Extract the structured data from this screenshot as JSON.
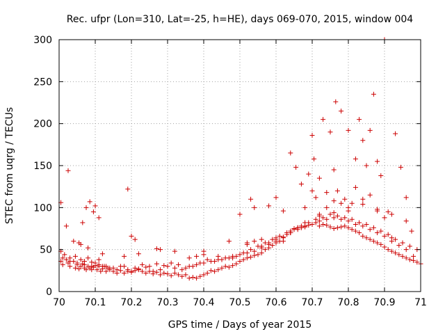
{
  "chart_data": {
    "type": "scatter",
    "title": "Rec. ufpr (Lon=310, Lat=-25, h=HE), days 069-070, 2015, window 004",
    "xlabel": "GPS time / Days of year 2015",
    "ylabel": "STEC from uqrg / TECUs",
    "xlim": [
      70,
      71
    ],
    "ylim": [
      0,
      300
    ],
    "xticks": [
      70,
      70.1,
      70.2,
      70.3,
      70.4,
      70.5,
      70.6,
      70.7,
      70.8,
      70.9,
      71
    ],
    "xtick_labels": [
      "70",
      "70.1",
      "70.2",
      "70.3",
      "70.4",
      "70.5",
      "70.6",
      "70.7",
      "70.8",
      "70.9",
      "71"
    ],
    "yticks": [
      0,
      50,
      100,
      150,
      200,
      250,
      300
    ],
    "ytick_labels": [
      "0",
      "50",
      "100",
      "150",
      "200",
      "250",
      "300"
    ],
    "grid": true,
    "marker": "plus",
    "color": "#cc0000",
    "series": [
      {
        "x": [
          70.005,
          70.01,
          70.02,
          70.025,
          70.03,
          70.04,
          70.045,
          70.05,
          70.055,
          70.06,
          70.065,
          70.07,
          70.075,
          70.08,
          70.085,
          70.09,
          70.095,
          70.1,
          70.105,
          70.11,
          70.115,
          70.12,
          70.125,
          70.13,
          70.135,
          70.14,
          70.15,
          70.16,
          70.17,
          70.18,
          70.19,
          70.2,
          70.21,
          70.22,
          70.23,
          70.24,
          70.25,
          70.26,
          70.27,
          70.28,
          70.29,
          70.3,
          70.31,
          70.32,
          70.33,
          70.34,
          70.35,
          70.36,
          70.37,
          70.38,
          70.39,
          70.4,
          70.41,
          70.42,
          70.43,
          70.44,
          70.45,
          70.46,
          70.47,
          70.48,
          70.49,
          70.5,
          70.51,
          70.52,
          70.53,
          70.54,
          70.55,
          70.56,
          70.57,
          70.58,
          70.59,
          70.6,
          70.61,
          70.62,
          70.63,
          70.64,
          70.65,
          70.66,
          70.67,
          70.68,
          70.69,
          70.7,
          70.71,
          70.72,
          70.73,
          70.74,
          70.75,
          70.76,
          70.77,
          70.78,
          70.79,
          70.8,
          70.81,
          70.82,
          70.83,
          70.84,
          70.85,
          70.86,
          70.87,
          70.88,
          70.89,
          70.9,
          70.91,
          70.92,
          70.93,
          70.94,
          70.95,
          70.96,
          70.97,
          70.98,
          70.99,
          71.0,
          70.005,
          70.015,
          70.03,
          70.045,
          70.06,
          70.07,
          70.08,
          70.09,
          70.1,
          70.11,
          70.12,
          70.14,
          70.16,
          70.18,
          70.2,
          70.22,
          70.24,
          70.26,
          70.28,
          70.3,
          70.32,
          70.34,
          70.36,
          70.38,
          70.4,
          70.42,
          70.44,
          70.46,
          70.48,
          70.5,
          70.52,
          70.54,
          70.56,
          70.58,
          70.6,
          70.62,
          70.64,
          70.66,
          70.68,
          70.7,
          70.72,
          70.74,
          70.76,
          70.78,
          70.8,
          70.82,
          70.84,
          70.86,
          70.88,
          70.9,
          70.92,
          70.94,
          70.96,
          70.98,
          70.01,
          70.03,
          70.05,
          70.07,
          70.09,
          70.11,
          70.13,
          70.15,
          70.17,
          70.19,
          70.21,
          70.23,
          70.25,
          70.27,
          70.29,
          70.31,
          70.33,
          70.35,
          70.37,
          70.39,
          70.41,
          70.43,
          70.45,
          70.47,
          70.49,
          70.51,
          70.53,
          70.55,
          70.57,
          70.59,
          70.61,
          70.63,
          70.65,
          70.67,
          70.69,
          70.71,
          70.73,
          70.75,
          70.77,
          70.79,
          70.81,
          70.83,
          70.85,
          70.87,
          70.89,
          70.91,
          70.93,
          70.95,
          70.97,
          70.99,
          70.02,
          70.04,
          70.06,
          70.08,
          70.12,
          70.18,
          70.22,
          70.28,
          70.32,
          70.36,
          70.4,
          70.44,
          70.48,
          70.52,
          70.56,
          70.6,
          70.64,
          70.68,
          70.72,
          70.76,
          70.8,
          70.84,
          70.88,
          70.92,
          70.96,
          70.005,
          70.025,
          70.055,
          70.065,
          70.075,
          70.085,
          70.095,
          70.1,
          70.11,
          70.19,
          70.2,
          70.21,
          70.27,
          70.38,
          70.4,
          70.47,
          70.5,
          70.53,
          70.54,
          70.58,
          70.6,
          70.62,
          70.64,
          70.655,
          70.67,
          70.69,
          70.7,
          70.705,
          70.71,
          70.72,
          70.73,
          70.74,
          70.75,
          70.76,
          70.765,
          70.77,
          70.78,
          70.79,
          70.8,
          70.81,
          70.82,
          70.83,
          70.84,
          70.85,
          70.86,
          70.87,
          70.88,
          70.89,
          70.9,
          70.91,
          70.93,
          70.945,
          70.96,
          70.975,
          70.68,
          70.7,
          70.72,
          70.74,
          70.76,
          70.78,
          70.8,
          70.82,
          70.84,
          70.86,
          70.88,
          70.9,
          70.92,
          70.64,
          70.66,
          70.62,
          70.6,
          70.58,
          70.56,
          70.54,
          70.52
        ],
        "y": [
          36,
          32,
          38,
          34,
          30,
          36,
          28,
          32,
          27,
          30,
          33,
          28,
          26,
          30,
          28,
          26,
          29,
          31,
          26,
          30,
          24,
          27,
          30,
          24,
          28,
          26,
          24,
          22,
          25,
          22,
          24,
          23,
          25,
          26,
          24,
          22,
          24,
          21,
          23,
          20,
          22,
          21,
          19,
          22,
          20,
          18,
          20,
          16,
          17,
          16,
          18,
          20,
          22,
          25,
          24,
          26,
          28,
          30,
          29,
          31,
          33,
          36,
          38,
          40,
          41,
          43,
          44,
          46,
          50,
          52,
          55,
          58,
          60,
          64,
          68,
          72,
          75,
          76,
          76,
          77,
          79,
          80,
          82,
          78,
          80,
          79,
          77,
          75,
          76,
          77,
          78,
          76,
          74,
          72,
          70,
          66,
          64,
          62,
          60,
          58,
          56,
          53,
          50,
          48,
          46,
          44,
          42,
          40,
          38,
          37,
          35,
          33,
          48,
          44,
          40,
          42,
          38,
          36,
          40,
          35,
          34,
          38,
          30,
          28,
          26,
          30,
          24,
          27,
          29,
          24,
          26,
          30,
          28,
          26,
          30,
          32,
          34,
          36,
          38,
          40,
          42,
          44,
          46,
          48,
          52,
          56,
          60,
          65,
          70,
          74,
          78,
          80,
          84,
          86,
          88,
          86,
          84,
          80,
          78,
          74,
          70,
          66,
          60,
          55,
          50,
          42,
          40,
          36,
          34,
          32,
          30,
          32,
          30,
          28,
          30,
          26,
          28,
          32,
          30,
          33,
          31,
          34,
          32,
          28,
          30,
          34,
          38,
          36,
          38,
          40,
          42,
          46,
          50,
          54,
          58,
          62,
          66,
          70,
          74,
          78,
          82,
          86,
          88,
          92,
          90,
          88,
          86,
          82,
          80,
          76,
          72,
          68,
          62,
          58,
          54,
          50,
          78,
          60,
          56,
          52,
          45,
          42,
          45,
          50,
          48,
          40,
          44,
          42,
          40,
          58,
          62,
          64,
          70,
          82,
          90,
          94,
          100,
          104,
          98,
          92,
          84,
          106,
          144,
          58,
          82,
          100,
          107,
          95,
          102,
          88,
          122,
          66,
          62,
          51,
          42,
          48,
          60,
          92,
          110,
          100,
          102,
          112,
          96,
          165,
          148,
          128,
          140,
          186,
          158,
          112,
          135,
          205,
          100,
          190,
          145,
          226,
          120,
          215,
          110,
          192,
          105,
          158,
          205,
          180,
          150,
          192,
          235,
          155,
          138,
          300,
          95,
          188,
          148,
          112,
          72,
          100,
          120,
          92,
          118,
          108,
          105,
          96,
          124,
          110,
          115,
          96,
          88,
          64,
          70,
          76,
          60,
          62,
          58,
          54,
          60,
          56
        ]
      }
    ]
  }
}
